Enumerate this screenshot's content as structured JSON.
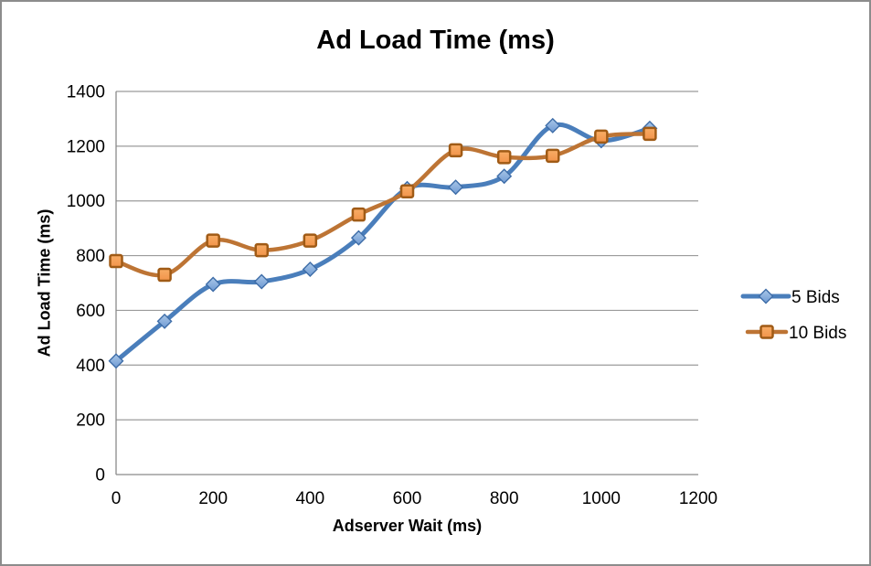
{
  "window": {
    "background": "#ffffff",
    "border_color": "#8c8c8c"
  },
  "chart_data": {
    "type": "line",
    "title": "Ad Load Time (ms)",
    "xlabel": "Adserver Wait (ms)",
    "ylabel": "Ad Load Time (ms)",
    "x": [
      0,
      100,
      200,
      300,
      400,
      500,
      600,
      700,
      800,
      900,
      1000,
      1100
    ],
    "series": [
      {
        "name": "5 Bids",
        "marker": "diamond",
        "smooth": true,
        "line_color": "#4a7ebb",
        "marker_fill": "#6f9ad3",
        "marker_fill_light": "#a9c7e8",
        "marker_stroke": "#3e6da8",
        "values": [
          415,
          560,
          695,
          705,
          750,
          865,
          1045,
          1050,
          1090,
          1275,
          1220,
          1265
        ]
      },
      {
        "name": "10 Bids",
        "marker": "square",
        "smooth": true,
        "line_color": "#bd7434",
        "marker_fill": "#f2944a",
        "marker_fill_light": "#f8ad66",
        "marker_stroke": "#a05b16",
        "values": [
          780,
          730,
          855,
          820,
          855,
          950,
          1035,
          1185,
          1160,
          1165,
          1235,
          1245
        ]
      }
    ],
    "xlim": [
      0,
      1200
    ],
    "ylim": [
      0,
      1400
    ],
    "x_ticks": [
      0,
      200,
      400,
      600,
      800,
      1000,
      1200
    ],
    "y_ticks": [
      0,
      200,
      400,
      600,
      800,
      1000,
      1200,
      1400
    ],
    "grid": "horizontal-only",
    "legend_position": "right",
    "axis_color": "#8a8a8a",
    "gridline_color": "#9b9b9b",
    "text_color": "#000000"
  }
}
